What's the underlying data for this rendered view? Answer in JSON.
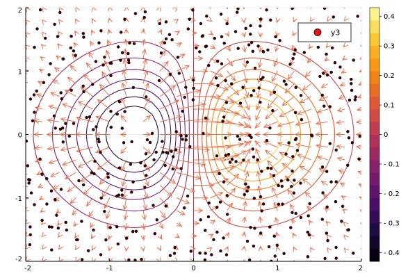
{
  "chart_data": {
    "type": "contour",
    "title": "",
    "xlabel": "",
    "ylabel": "",
    "xlim": [
      -2,
      2
    ],
    "ylim": [
      -2,
      2
    ],
    "x_ticks": [
      -2,
      -1,
      0,
      1,
      2
    ],
    "y_ticks": [
      -2,
      -1,
      0,
      1,
      2
    ],
    "x_tick_labels": [
      "-2",
      "-1",
      "0",
      "1",
      "2"
    ],
    "y_tick_labels": [
      "-2",
      "-1",
      "0",
      "1",
      "2"
    ],
    "grid": true,
    "contour_function": "x * exp(-(x^2 + y^2))",
    "contour_levels": [
      -0.35,
      -0.3,
      -0.25,
      -0.2,
      -0.15,
      -0.1,
      -0.05,
      0.05,
      0.1,
      0.15,
      0.2,
      0.25,
      0.3,
      0.35
    ],
    "quiver_field": "gradient of x * exp(-(x^2 + y^2)), sampled on a regular grid",
    "colorbar": {
      "range": [
        -0.43,
        0.43
      ],
      "tick_values": [
        -0.4,
        -0.3,
        -0.2,
        -0.1,
        0,
        0.1,
        0.2,
        0.3,
        0.4
      ],
      "tick_labels": [
        "- 0.4",
        "- 0.3",
        "- 0.2",
        "- 0.1",
        "0",
        "0.1",
        "0.2",
        "0.3",
        "0.4"
      ]
    },
    "legend": {
      "placement": "top-right",
      "entries": [
        "y3"
      ]
    },
    "series": [
      {
        "name": "y3",
        "kind": "scatter",
        "count": 400,
        "distribution": "uniform random over [-2,2] x [-2,2]"
      }
    ],
    "colors": {
      "scatter_fill": "#e8131b",
      "quiver": "#e8704a",
      "contour_low": "#3a0a5c",
      "contour_high": "#f7b733",
      "grid": "#ececec"
    }
  }
}
